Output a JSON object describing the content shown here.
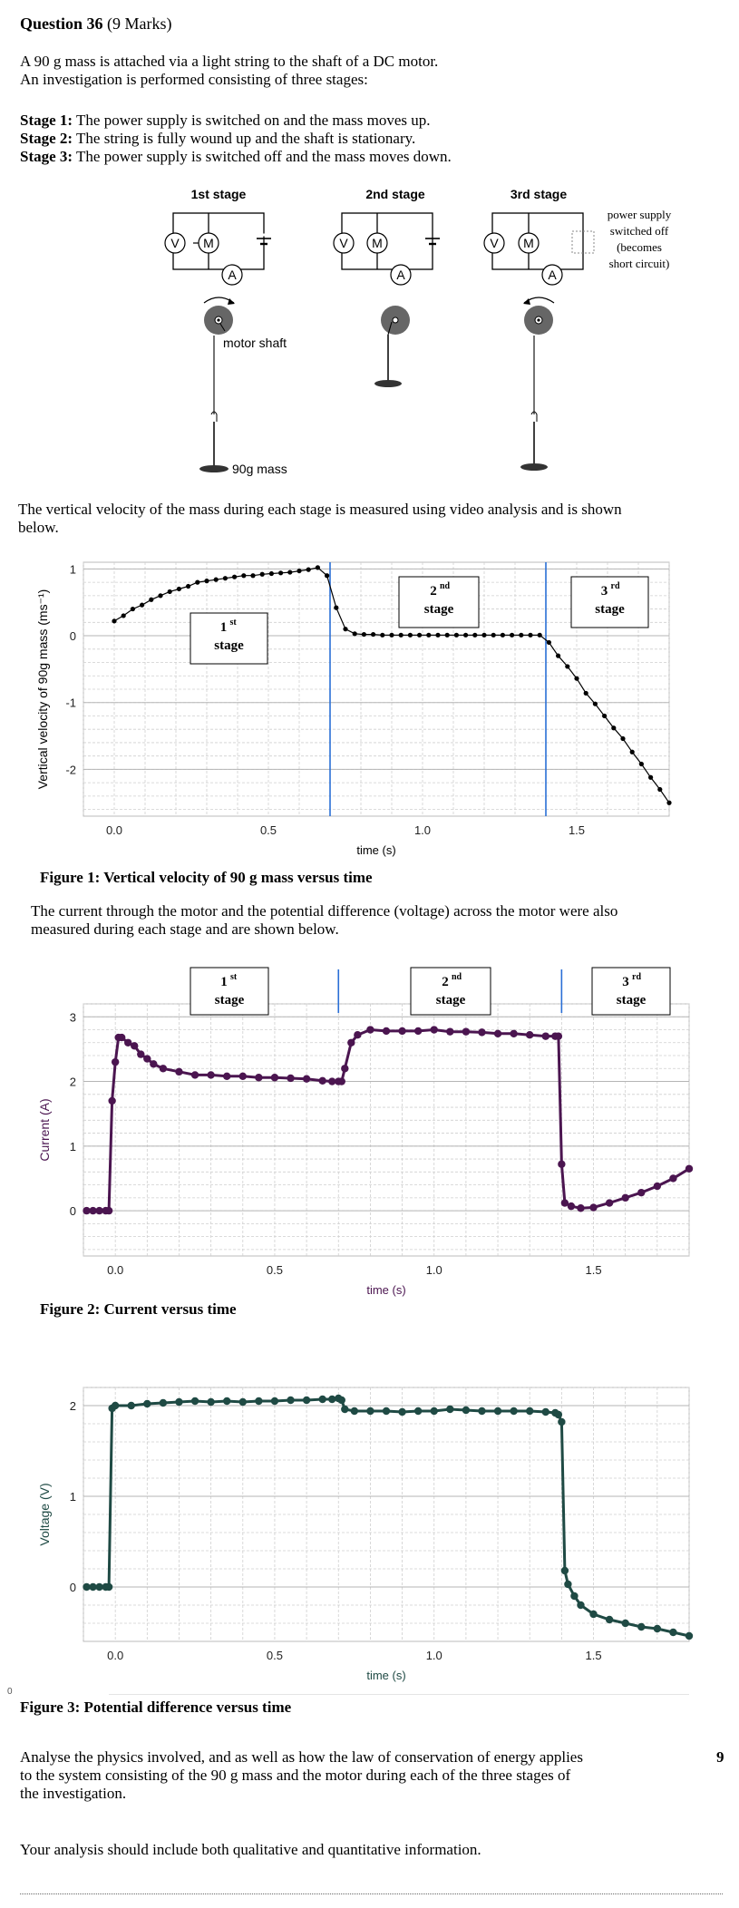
{
  "question": {
    "number_label": "Question 36",
    "marks_label": "(9 Marks)"
  },
  "intro": {
    "line1": "A 90 g mass is attached via a light string to the shaft of a DC motor.",
    "line2": "An investigation is performed consisting of three stages:"
  },
  "stages": [
    {
      "label": "Stage 1:",
      "text": "The power supply is switched on and the mass moves up."
    },
    {
      "label": "Stage 2:",
      "text": "The string is fully wound up and the shaft is stationary."
    },
    {
      "label": "Stage 3:",
      "text": "The power supply is switched off and the mass moves down."
    }
  ],
  "diagram": {
    "stage_titles": [
      "1st stage",
      "2nd stage",
      "3rd stage"
    ],
    "meter_v": "V",
    "meter_m": "M",
    "meter_a": "A",
    "motor_shaft_label": "motor shaft",
    "mass_label": "90g mass",
    "power_off_note": [
      "power supply",
      "switched off",
      "(becomes",
      "short circuit)"
    ]
  },
  "velocity_intro": {
    "line1": "The vertical velocity of the mass during each stage is measured using video analysis and is shown",
    "line2": "below."
  },
  "stage_boxes": [
    {
      "main": "1",
      "sup": "st",
      "word": "stage"
    },
    {
      "main": "2",
      "sup": "nd",
      "word": "stage"
    },
    {
      "main": "3",
      "sup": "rd",
      "word": "stage"
    }
  ],
  "fig1": {
    "caption": "Figure 1: Vertical velocity of 90 g mass versus time"
  },
  "current_intro": {
    "line1": "The current through the motor and the potential difference (voltage) across the motor were also",
    "line2": "measured during each stage and are shown below."
  },
  "fig2": {
    "caption": "Figure 2: Current versus time"
  },
  "fig3": {
    "caption": "Figure 3: Potential difference versus time"
  },
  "stray_mark": "0",
  "task": {
    "line1": "Analyse the physics involved, and as well as how the law of conservation of energy applies",
    "line2": "to the system consisting of the 90 g mass and the motor during each of the three stages of",
    "line3": "the investigation.",
    "marks": "9",
    "line4": "Your analysis should include both qualitative and quantitative information."
  },
  "chart_data": [
    {
      "type": "scatter",
      "title": "",
      "xlabel": "time (s)",
      "ylabel": "Vertical velocity of 90g mass (ms⁻¹)",
      "xlim": [
        -0.1,
        1.8
      ],
      "ylim": [
        -2.7,
        1.1
      ],
      "xticks": [
        "0.0",
        "0.5",
        "1.0",
        "1.5"
      ],
      "yticks": [
        "1",
        "0",
        "-1",
        "-2"
      ],
      "stage_dividers_x": [
        0.7,
        1.4
      ],
      "grid": true,
      "point_color": "#000000",
      "series": [
        {
          "x": [
            0.0,
            0.03,
            0.06,
            0.09,
            0.12,
            0.15,
            0.18,
            0.21,
            0.24,
            0.27,
            0.3,
            0.33,
            0.36,
            0.39,
            0.42,
            0.45,
            0.48,
            0.51,
            0.54,
            0.57,
            0.6,
            0.63,
            0.66,
            0.69,
            0.72,
            0.75,
            0.78,
            0.81,
            0.84,
            0.87,
            0.9,
            0.93,
            0.96,
            0.99,
            1.02,
            1.05,
            1.08,
            1.11,
            1.14,
            1.17,
            1.2,
            1.23,
            1.26,
            1.29,
            1.32,
            1.35,
            1.38,
            1.41,
            1.44,
            1.47,
            1.5,
            1.53,
            1.56,
            1.59,
            1.62,
            1.65,
            1.68,
            1.71,
            1.74,
            1.77,
            1.8
          ],
          "y": [
            0.22,
            0.3,
            0.4,
            0.46,
            0.54,
            0.6,
            0.66,
            0.7,
            0.74,
            0.8,
            0.82,
            0.84,
            0.86,
            0.88,
            0.9,
            0.9,
            0.92,
            0.93,
            0.94,
            0.95,
            0.97,
            0.99,
            1.02,
            0.9,
            0.42,
            0.1,
            0.03,
            0.02,
            0.02,
            0.01,
            0.01,
            0.01,
            0.01,
            0.01,
            0.01,
            0.01,
            0.01,
            0.01,
            0.01,
            0.01,
            0.01,
            0.01,
            0.01,
            0.01,
            0.01,
            0.01,
            0.01,
            -0.1,
            -0.3,
            -0.46,
            -0.64,
            -0.86,
            -1.02,
            -1.2,
            -1.38,
            -1.54,
            -1.74,
            -1.92,
            -2.12,
            -2.3,
            -2.5
          ]
        }
      ]
    },
    {
      "type": "scatter",
      "title": "",
      "xlabel": "time (s)",
      "ylabel": "Current (A)",
      "xlim": [
        -0.1,
        1.8
      ],
      "ylim": [
        -0.7,
        3.2
      ],
      "xticks": [
        "0.0",
        "0.5",
        "1.0",
        "1.5"
      ],
      "yticks": [
        "3",
        "2",
        "1",
        "0"
      ],
      "stage_dividers_x": [
        0.7,
        1.4
      ],
      "grid": true,
      "point_color": "#4b1550",
      "series": [
        {
          "x": [
            -0.09,
            -0.07,
            -0.05,
            -0.03,
            -0.02,
            -0.01,
            0.0,
            0.01,
            0.02,
            0.04,
            0.06,
            0.08,
            0.1,
            0.12,
            0.15,
            0.2,
            0.25,
            0.3,
            0.35,
            0.4,
            0.45,
            0.5,
            0.55,
            0.6,
            0.65,
            0.68,
            0.7,
            0.71,
            0.72,
            0.74,
            0.76,
            0.8,
            0.85,
            0.9,
            0.95,
            1.0,
            1.05,
            1.1,
            1.15,
            1.2,
            1.25,
            1.3,
            1.35,
            1.38,
            1.39,
            1.4,
            1.41,
            1.43,
            1.46,
            1.5,
            1.55,
            1.6,
            1.65,
            1.7,
            1.75,
            1.8
          ],
          "y": [
            0.0,
            0.0,
            0.0,
            0.0,
            0.0,
            1.7,
            2.3,
            2.68,
            2.68,
            2.6,
            2.55,
            2.42,
            2.35,
            2.27,
            2.2,
            2.15,
            2.1,
            2.1,
            2.08,
            2.08,
            2.06,
            2.06,
            2.05,
            2.04,
            2.01,
            2.0,
            2.0,
            2.0,
            2.2,
            2.6,
            2.72,
            2.8,
            2.78,
            2.78,
            2.78,
            2.8,
            2.77,
            2.77,
            2.76,
            2.74,
            2.74,
            2.72,
            2.7,
            2.7,
            2.7,
            0.72,
            0.12,
            0.07,
            0.04,
            0.05,
            0.12,
            0.2,
            0.28,
            0.38,
            0.5,
            0.65
          ]
        }
      ]
    },
    {
      "type": "scatter",
      "title": "",
      "xlabel": "time (s)",
      "ylabel": "Voltage (V)",
      "xlim": [
        -0.1,
        1.8
      ],
      "ylim": [
        -0.6,
        2.2
      ],
      "xticks": [
        "0.0",
        "0.5",
        "1.0",
        "1.5"
      ],
      "yticks": [
        "2",
        "1",
        "0"
      ],
      "grid": true,
      "point_color": "#1f4a44",
      "series": [
        {
          "x": [
            -0.09,
            -0.07,
            -0.05,
            -0.03,
            -0.02,
            -0.01,
            0.0,
            0.05,
            0.1,
            0.15,
            0.2,
            0.25,
            0.3,
            0.35,
            0.4,
            0.45,
            0.5,
            0.55,
            0.6,
            0.65,
            0.68,
            0.7,
            0.71,
            0.72,
            0.75,
            0.8,
            0.85,
            0.9,
            0.95,
            1.0,
            1.05,
            1.1,
            1.15,
            1.2,
            1.25,
            1.3,
            1.35,
            1.38,
            1.39,
            1.4,
            1.41,
            1.42,
            1.44,
            1.46,
            1.5,
            1.55,
            1.6,
            1.65,
            1.7,
            1.75,
            1.8
          ],
          "y": [
            0.0,
            0.0,
            0.0,
            0.0,
            0.0,
            1.97,
            2.0,
            2.0,
            2.02,
            2.03,
            2.04,
            2.05,
            2.04,
            2.05,
            2.04,
            2.05,
            2.05,
            2.06,
            2.06,
            2.07,
            2.07,
            2.08,
            2.06,
            1.96,
            1.94,
            1.94,
            1.94,
            1.93,
            1.94,
            1.94,
            1.96,
            1.95,
            1.94,
            1.94,
            1.94,
            1.94,
            1.93,
            1.92,
            1.9,
            1.82,
            0.18,
            0.03,
            -0.1,
            -0.2,
            -0.3,
            -0.36,
            -0.4,
            -0.44,
            -0.46,
            -0.5,
            -0.54
          ]
        }
      ]
    }
  ]
}
